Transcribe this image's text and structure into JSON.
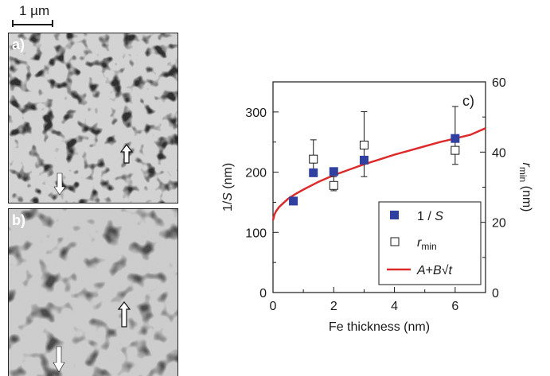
{
  "scale_bar": {
    "label": "1 µm"
  },
  "panels": [
    {
      "label": "a)"
    },
    {
      "label": "b)"
    }
  ],
  "chart_data": {
    "type": "scatter",
    "panel_label": "c)",
    "xlabel": "Fe thickness (nm)",
    "ylabel_left": {
      "text": "1/",
      "italic": "S",
      "suffix": " (nm)"
    },
    "ylabel_right": {
      "text": "r",
      "sub": "min",
      "suffix": " (nm)"
    },
    "x_ticks": [
      "0",
      "2",
      "4",
      "6"
    ],
    "y_left_ticks": [
      "0",
      "100",
      "200",
      "300"
    ],
    "y_right_ticks": [
      "0",
      "20",
      "40",
      "60"
    ],
    "xlim": [
      0,
      7
    ],
    "ylim_left": [
      0,
      350
    ],
    "ylim_right": [
      0,
      60
    ],
    "series": [
      {
        "name": "1 / S",
        "marker": "filled-square",
        "color": "#3040a0",
        "axis": "left",
        "x": [
          0.67,
          1.33,
          2.0,
          3.0,
          6.0
        ],
        "y": [
          152,
          199,
          201,
          220,
          256
        ]
      },
      {
        "name": "r_min",
        "marker": "open-square",
        "color": "#1a1a1a",
        "axis": "right",
        "x": [
          1.33,
          2.0,
          3.0,
          6.0
        ],
        "y": [
          38,
          30.5,
          42,
          40.5
        ],
        "err_low": [
          33.5,
          29,
          33,
          36.5
        ],
        "err_high": [
          43.5,
          33,
          51.5,
          53
        ]
      },
      {
        "name": "A+B√t",
        "type": "line",
        "color": "#dd2a2a",
        "axis": "left",
        "x": [
          0.0,
          0.05,
          0.1,
          0.2,
          0.35,
          0.5,
          0.75,
          1.0,
          1.5,
          2.0,
          2.5,
          3.0,
          3.5,
          4.0,
          4.5,
          5.0,
          5.5,
          6.0,
          6.5,
          7.0
        ],
        "y": [
          120,
          130,
          135,
          142,
          149,
          156,
          164,
          171,
          184,
          195,
          204,
          213,
          221,
          229,
          236,
          243,
          250,
          256,
          262,
          273
        ]
      }
    ],
    "legend": [
      {
        "prefix": "1 / ",
        "italic": "S"
      },
      {
        "prefix": "",
        "italic": "r",
        "sub": "min"
      },
      {
        "prefix": "",
        "italic": "A",
        "mid": "+",
        "italic2": "B",
        "tail": "√",
        "italic3": "t"
      }
    ],
    "legend_position": "bottom-right"
  }
}
